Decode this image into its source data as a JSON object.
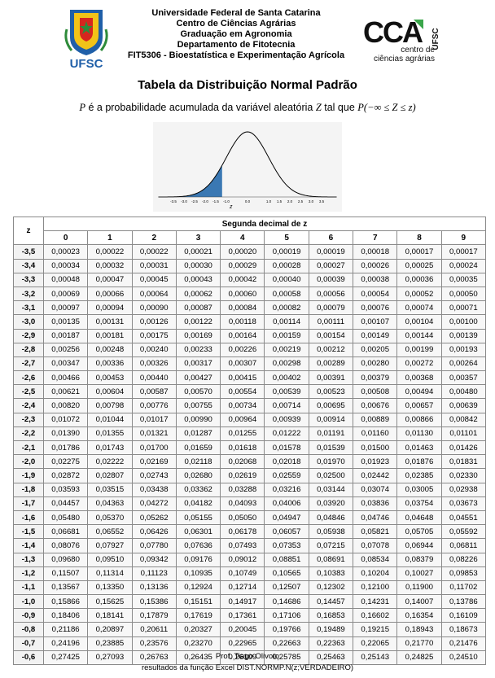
{
  "header": {
    "ufsc_logo_text": "UFSC",
    "institution_lines": [
      "Universidade Federal de Santa Catarina",
      "Centro de Ciências Agrárias",
      "Graduação em Agronomia",
      "Departamento de Fitotecnia",
      "FIT5306 - Bioestatística e Experimentação Agrícola"
    ],
    "cca_logo_text": "CCA",
    "cca_side_text": "UFSC",
    "cca_caption_line1": "centro de",
    "cca_caption_line2": "ciências agrárias"
  },
  "title": "Tabela da Distribuição Normal Padrão",
  "subtitle": {
    "var_p": "P",
    "text": " é a probabilidade acumulada da variável aleatória ",
    "var_z": "Z",
    "tal": " tal que ",
    "formula": "P(−∞ ≤ Z ≤ z)"
  },
  "curve": {
    "ticks": [
      "-3.5",
      "-3.0",
      "-2.5",
      "-2.0",
      "-1.5",
      "-1.0",
      "0.0",
      "1.0",
      "1.5",
      "2.0",
      "2.5",
      "3.0",
      "3.5"
    ],
    "axis_label": "z",
    "shaded_color": "#3a78b3"
  },
  "table": {
    "z_header": "z",
    "group_header": "Segunda decimal de z",
    "columns": [
      "0",
      "1",
      "2",
      "3",
      "4",
      "5",
      "6",
      "7",
      "8",
      "9"
    ],
    "rows": [
      {
        "z": "-3,5",
        "values": [
          "0,00023",
          "0,00022",
          "0,00022",
          "0,00021",
          "0,00020",
          "0,00019",
          "0,00019",
          "0,00018",
          "0,00017",
          "0,00017"
        ]
      },
      {
        "z": "-3,4",
        "values": [
          "0,00034",
          "0,00032",
          "0,00031",
          "0,00030",
          "0,00029",
          "0,00028",
          "0,00027",
          "0,00026",
          "0,00025",
          "0,00024"
        ]
      },
      {
        "z": "-3,3",
        "values": [
          "0,00048",
          "0,00047",
          "0,00045",
          "0,00043",
          "0,00042",
          "0,00040",
          "0,00039",
          "0,00038",
          "0,00036",
          "0,00035"
        ]
      },
      {
        "z": "-3,2",
        "values": [
          "0,00069",
          "0,00066",
          "0,00064",
          "0,00062",
          "0,00060",
          "0,00058",
          "0,00056",
          "0,00054",
          "0,00052",
          "0,00050"
        ]
      },
      {
        "z": "-3,1",
        "values": [
          "0,00097",
          "0,00094",
          "0,00090",
          "0,00087",
          "0,00084",
          "0,00082",
          "0,00079",
          "0,00076",
          "0,00074",
          "0,00071"
        ]
      },
      {
        "z": "-3,0",
        "values": [
          "0,00135",
          "0,00131",
          "0,00126",
          "0,00122",
          "0,00118",
          "0,00114",
          "0,00111",
          "0,00107",
          "0,00104",
          "0,00100"
        ]
      },
      {
        "z": "-2,9",
        "values": [
          "0,00187",
          "0,00181",
          "0,00175",
          "0,00169",
          "0,00164",
          "0,00159",
          "0,00154",
          "0,00149",
          "0,00144",
          "0,00139"
        ]
      },
      {
        "z": "-2,8",
        "values": [
          "0,00256",
          "0,00248",
          "0,00240",
          "0,00233",
          "0,00226",
          "0,00219",
          "0,00212",
          "0,00205",
          "0,00199",
          "0,00193"
        ]
      },
      {
        "z": "-2,7",
        "values": [
          "0,00347",
          "0,00336",
          "0,00326",
          "0,00317",
          "0,00307",
          "0,00298",
          "0,00289",
          "0,00280",
          "0,00272",
          "0,00264"
        ]
      },
      {
        "z": "-2,6",
        "values": [
          "0,00466",
          "0,00453",
          "0,00440",
          "0,00427",
          "0,00415",
          "0,00402",
          "0,00391",
          "0,00379",
          "0,00368",
          "0,00357"
        ]
      },
      {
        "z": "-2,5",
        "values": [
          "0,00621",
          "0,00604",
          "0,00587",
          "0,00570",
          "0,00554",
          "0,00539",
          "0,00523",
          "0,00508",
          "0,00494",
          "0,00480"
        ]
      },
      {
        "z": "-2,4",
        "values": [
          "0,00820",
          "0,00798",
          "0,00776",
          "0,00755",
          "0,00734",
          "0,00714",
          "0,00695",
          "0,00676",
          "0,00657",
          "0,00639"
        ]
      },
      {
        "z": "-2,3",
        "values": [
          "0,01072",
          "0,01044",
          "0,01017",
          "0,00990",
          "0,00964",
          "0,00939",
          "0,00914",
          "0,00889",
          "0,00866",
          "0,00842"
        ]
      },
      {
        "z": "-2,2",
        "values": [
          "0,01390",
          "0,01355",
          "0,01321",
          "0,01287",
          "0,01255",
          "0,01222",
          "0,01191",
          "0,01160",
          "0,01130",
          "0,01101"
        ]
      },
      {
        "z": "-2,1",
        "values": [
          "0,01786",
          "0,01743",
          "0,01700",
          "0,01659",
          "0,01618",
          "0,01578",
          "0,01539",
          "0,01500",
          "0,01463",
          "0,01426"
        ]
      },
      {
        "z": "-2,0",
        "values": [
          "0,02275",
          "0,02222",
          "0,02169",
          "0,02118",
          "0,02068",
          "0,02018",
          "0,01970",
          "0,01923",
          "0,01876",
          "0,01831"
        ]
      },
      {
        "z": "-1,9",
        "values": [
          "0,02872",
          "0,02807",
          "0,02743",
          "0,02680",
          "0,02619",
          "0,02559",
          "0,02500",
          "0,02442",
          "0,02385",
          "0,02330"
        ]
      },
      {
        "z": "-1,8",
        "values": [
          "0,03593",
          "0,03515",
          "0,03438",
          "0,03362",
          "0,03288",
          "0,03216",
          "0,03144",
          "0,03074",
          "0,03005",
          "0,02938"
        ]
      },
      {
        "z": "-1,7",
        "values": [
          "0,04457",
          "0,04363",
          "0,04272",
          "0,04182",
          "0,04093",
          "0,04006",
          "0,03920",
          "0,03836",
          "0,03754",
          "0,03673"
        ]
      },
      {
        "z": "-1,6",
        "values": [
          "0,05480",
          "0,05370",
          "0,05262",
          "0,05155",
          "0,05050",
          "0,04947",
          "0,04846",
          "0,04746",
          "0,04648",
          "0,04551"
        ]
      },
      {
        "z": "-1,5",
        "values": [
          "0,06681",
          "0,06552",
          "0,06426",
          "0,06301",
          "0,06178",
          "0,06057",
          "0,05938",
          "0,05821",
          "0,05705",
          "0,05592"
        ]
      },
      {
        "z": "-1,4",
        "values": [
          "0,08076",
          "0,07927",
          "0,07780",
          "0,07636",
          "0,07493",
          "0,07353",
          "0,07215",
          "0,07078",
          "0,06944",
          "0,06811"
        ]
      },
      {
        "z": "-1,3",
        "values": [
          "0,09680",
          "0,09510",
          "0,09342",
          "0,09176",
          "0,09012",
          "0,08851",
          "0,08691",
          "0,08534",
          "0,08379",
          "0,08226"
        ]
      },
      {
        "z": "-1,2",
        "values": [
          "0,11507",
          "0,11314",
          "0,11123",
          "0,10935",
          "0,10749",
          "0,10565",
          "0,10383",
          "0,10204",
          "0,10027",
          "0,09853"
        ]
      },
      {
        "z": "-1,1",
        "values": [
          "0,13567",
          "0,13350",
          "0,13136",
          "0,12924",
          "0,12714",
          "0,12507",
          "0,12302",
          "0,12100",
          "0,11900",
          "0,11702"
        ]
      },
      {
        "z": "-1,0",
        "values": [
          "0,15866",
          "0,15625",
          "0,15386",
          "0,15151",
          "0,14917",
          "0,14686",
          "0,14457",
          "0,14231",
          "0,14007",
          "0,13786"
        ]
      },
      {
        "z": "-0,9",
        "values": [
          "0,18406",
          "0,18141",
          "0,17879",
          "0,17619",
          "0,17361",
          "0,17106",
          "0,16853",
          "0,16602",
          "0,16354",
          "0,16109"
        ]
      },
      {
        "z": "-0,8",
        "values": [
          "0,21186",
          "0,20897",
          "0,20611",
          "0,20327",
          "0,20045",
          "0,19766",
          "0,19489",
          "0,19215",
          "0,18943",
          "0,18673"
        ]
      },
      {
        "z": "-0,7",
        "values": [
          "0,24196",
          "0,23885",
          "0,23576",
          "0,23270",
          "0,22965",
          "0,22663",
          "0,22363",
          "0,22065",
          "0,21770",
          "0,21476"
        ]
      },
      {
        "z": "-0,6",
        "values": [
          "0,27425",
          "0,27093",
          "0,26763",
          "0,26435",
          "0,26109",
          "0,25785",
          "0,25463",
          "0,25143",
          "0,24825",
          "0,24510"
        ]
      }
    ]
  },
  "footer": {
    "author": "Prof. Tiago Olivoto",
    "note": "resultados da função Excel DIST.NORMP.N(z;VERDADEIRO)"
  }
}
